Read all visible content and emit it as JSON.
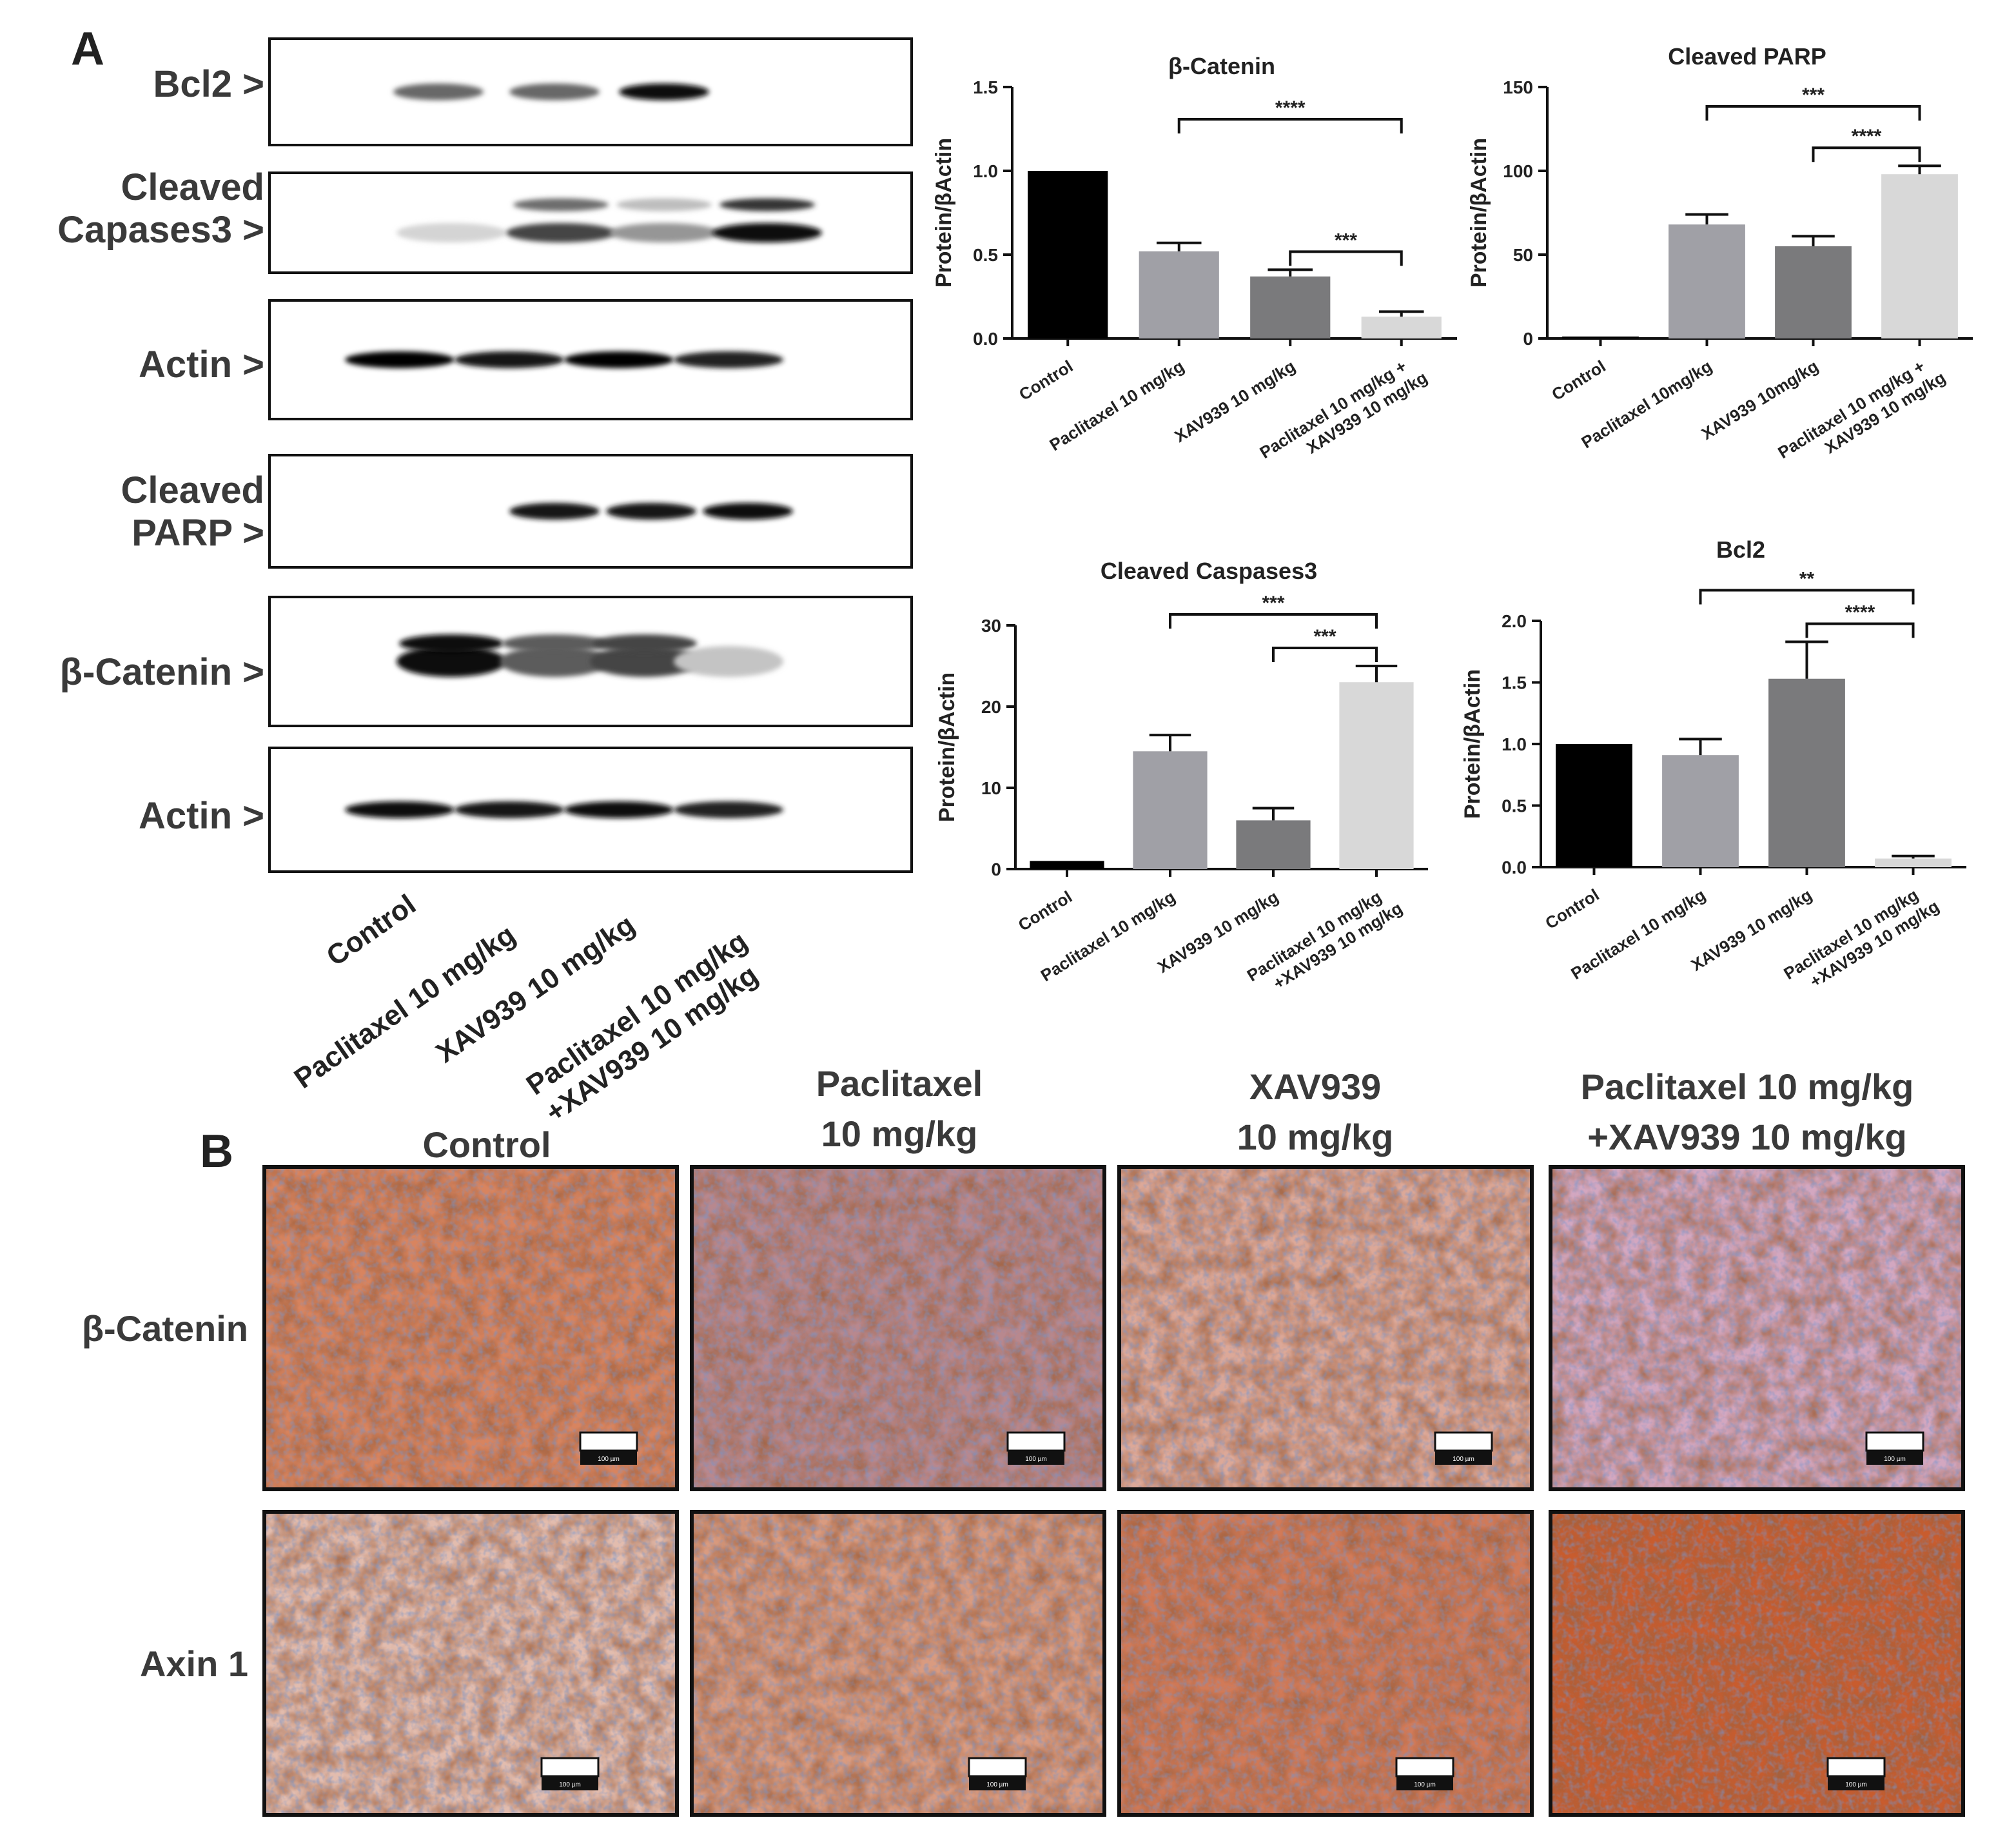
{
  "panel_labels": {
    "a": "A",
    "b": "B"
  },
  "western_blot": {
    "rows": [
      {
        "label": "Bcl2 >",
        "bands": [
          0,
          0.55,
          0.55,
          0.95,
          0
        ]
      },
      {
        "label": "Cleaved\nCapases3 >",
        "bands": [
          0.08,
          0.7,
          0.35,
          0.95,
          0
        ]
      },
      {
        "label": "Actin >",
        "bands": [
          1,
          0.9,
          1,
          0.85,
          0
        ]
      },
      {
        "label": "Cleaved\nPARP >",
        "bands": [
          0,
          0.9,
          0.9,
          0.95,
          0
        ]
      },
      {
        "label": "β-Catenin >",
        "bands": [
          0.95,
          0.6,
          0.7,
          0.15,
          0
        ]
      },
      {
        "label": "Actin >",
        "bands": [
          0.95,
          0.9,
          0.95,
          0.85,
          0
        ]
      }
    ],
    "lanes": [
      "Control",
      "Paclitaxel 10 mg/kg",
      "XAV939 10 mg/kg",
      "Paclitaxel 10 mg/kg\n+XAV939 10 mg/kg"
    ]
  },
  "axis_common": {
    "ylabel": "Protein/βActin"
  },
  "chart_data": [
    {
      "type": "bar",
      "title": "β-Catenin",
      "ylabel": "Protein/βActin",
      "categories": [
        "Control",
        "Paclitaxel 10 mg/kg",
        "XAV939 10 mg/kg",
        "Paclitaxel 10 mg/kg +\nXAV939 10 mg/kg"
      ],
      "values": [
        1.0,
        0.52,
        0.37,
        0.13
      ],
      "errors": [
        0,
        0.05,
        0.04,
        0.03
      ],
      "colors": [
        "#000000",
        "#a0a0a6",
        "#7a7a7c",
        "#d8d8d8"
      ],
      "ylim": [
        0,
        1.5
      ],
      "yticks": [
        "0.0",
        "0.5",
        "1.0",
        "1.5"
      ],
      "significance": [
        {
          "from": 1,
          "to": 3,
          "label": "****"
        },
        {
          "from": 2,
          "to": 3,
          "label": "***"
        }
      ]
    },
    {
      "type": "bar",
      "title": "Cleaved PARP",
      "ylabel": "Protein/βActin",
      "categories": [
        "Control",
        "Paclitaxel 10mg/kg",
        "XAV939 10mg/kg",
        "Paclitaxel 10 mg/kg +\nXAV939 10 mg/kg"
      ],
      "values": [
        1,
        68,
        55,
        98
      ],
      "errors": [
        0,
        6,
        6,
        5
      ],
      "colors": [
        "#000000",
        "#a0a0a6",
        "#7a7a7c",
        "#d8d8d8"
      ],
      "ylim": [
        0,
        150
      ],
      "yticks": [
        "0",
        "50",
        "100",
        "150"
      ],
      "significance": [
        {
          "from": 1,
          "to": 3,
          "label": "***"
        },
        {
          "from": 2,
          "to": 3,
          "label": "****"
        }
      ]
    },
    {
      "type": "bar",
      "title": "Cleaved Caspases3",
      "ylabel": "Protein/βActin",
      "categories": [
        "Control",
        "Paclitaxel 10 mg/kg",
        "XAV939 10 mg/kg",
        "Paclitaxel 10 mg/kg\n+XAV939 10 mg/kg"
      ],
      "values": [
        1,
        14.5,
        6,
        23
      ],
      "errors": [
        0,
        2,
        1.5,
        2
      ],
      "colors": [
        "#000000",
        "#a0a0a6",
        "#7a7a7c",
        "#d8d8d8"
      ],
      "ylim": [
        0,
        30
      ],
      "yticks": [
        "0",
        "10",
        "20",
        "30"
      ],
      "significance": [
        {
          "from": 1,
          "to": 3,
          "label": "***"
        },
        {
          "from": 2,
          "to": 3,
          "label": "***"
        }
      ]
    },
    {
      "type": "bar",
      "title": "Bcl2",
      "ylabel": "Protein/βActin",
      "categories": [
        "Control",
        "Paclitaxel 10 mg/kg",
        "XAV939 10 mg/kg",
        "Paclitaxel 10 mg/kg\n+XAV939 10 mg/kg"
      ],
      "values": [
        1.0,
        0.91,
        1.53,
        0.07
      ],
      "errors": [
        0,
        0.13,
        0.3,
        0.02
      ],
      "colors": [
        "#000000",
        "#a0a0a6",
        "#7a7a7c",
        "#d8d8d8"
      ],
      "ylim": [
        0,
        2.0
      ],
      "yticks": [
        "0.0",
        "0.5",
        "1.0",
        "1.5",
        "2.0"
      ],
      "significance": [
        {
          "from": 1,
          "to": 3,
          "label": "**"
        },
        {
          "from": 2,
          "to": 3,
          "label": "****"
        }
      ]
    }
  ],
  "ihc": {
    "columns": [
      "Control",
      "Paclitaxel\n10 mg/kg",
      "XAV939\n10 mg/kg",
      "Paclitaxel 10 mg/kg\n+XAV939 10 mg/kg"
    ],
    "rows": [
      "β-Catenin",
      "Axin 1"
    ],
    "scale_bar": "100 µm",
    "stain_colors": [
      [
        "#d8845f",
        "#b8888e",
        "#dca898",
        "#d3a7c0"
      ],
      [
        "#e2bcae",
        "#d99b80",
        "#d17a58",
        "#c85c2e"
      ]
    ]
  }
}
